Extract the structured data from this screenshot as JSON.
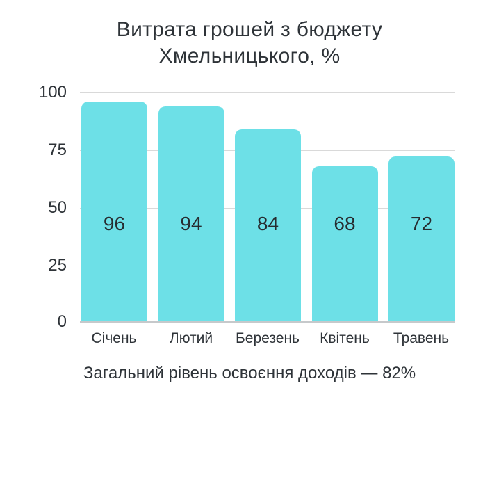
{
  "title": {
    "line1": "Витрата грошей з бюджету",
    "line2": "Хмельницького, %"
  },
  "caption": "Загальний рівень освоєння доходів — 82%",
  "chart_data": {
    "type": "bar",
    "title": "Витрата грошей з бюджету Хмельницького, %",
    "categories": [
      "Січень",
      "Лютий",
      "Березень",
      "Квітень",
      "Травень"
    ],
    "values": [
      96,
      94,
      84,
      68,
      72
    ],
    "value_labels": [
      "96",
      "94",
      "84",
      "68",
      "72"
    ],
    "yticks": [
      "100",
      "75",
      "50",
      "25",
      "0"
    ],
    "ylim": [
      0,
      100
    ],
    "xlabel": "",
    "ylabel": "",
    "grid": "horizontal",
    "legend": "none",
    "annotation": "Загальний рівень освоєння доходів — 82%"
  },
  "colors": {
    "bar": "#6de0e7",
    "text": "#2e3338",
    "grid": "#d9d9d9",
    "axis": "#c6c9cb",
    "background": "#ffffff"
  }
}
